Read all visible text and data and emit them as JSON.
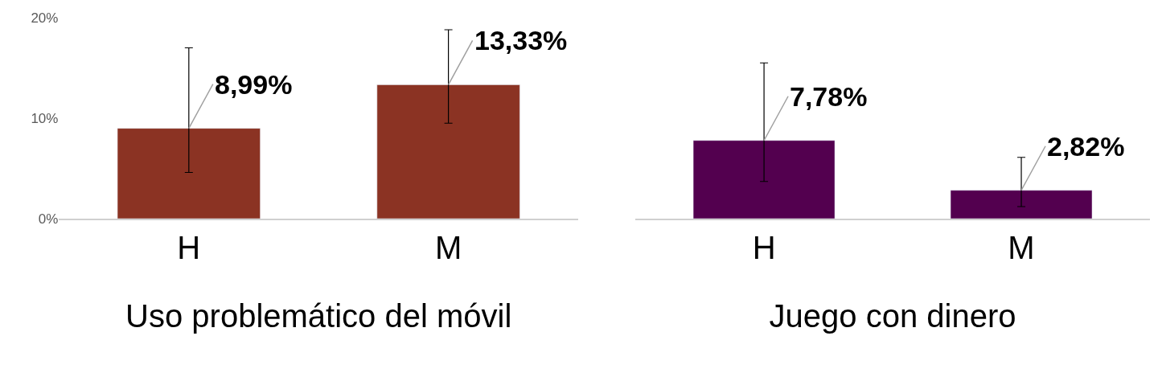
{
  "chart_data": [
    {
      "type": "bar",
      "xlabel": "Uso problemático del móvil",
      "categories": [
        "H",
        "M"
      ],
      "values": [
        8.99,
        13.33
      ],
      "color": "#8b3323",
      "errors": [
        [
          4.6,
          17.0
        ],
        [
          9.5,
          18.8
        ]
      ],
      "value_labels": [
        "8,99%",
        "13,33%"
      ],
      "ylim": [
        0,
        20
      ],
      "yticks": [
        {
          "value": 0,
          "label": "0%"
        },
        {
          "value": 10,
          "label": "10%"
        },
        {
          "value": 20,
          "label": "20%"
        }
      ]
    },
    {
      "type": "bar",
      "xlabel": "Juego con dinero",
      "categories": [
        "H",
        "M"
      ],
      "values": [
        7.78,
        2.82
      ],
      "color": "#53004f",
      "errors": [
        [
          3.7,
          15.5
        ],
        [
          1.2,
          6.1
        ]
      ],
      "value_labels": [
        "7,78%",
        "2,82%"
      ],
      "ylim": [
        0,
        20
      ],
      "tick_labels": "x"
    }
  ]
}
